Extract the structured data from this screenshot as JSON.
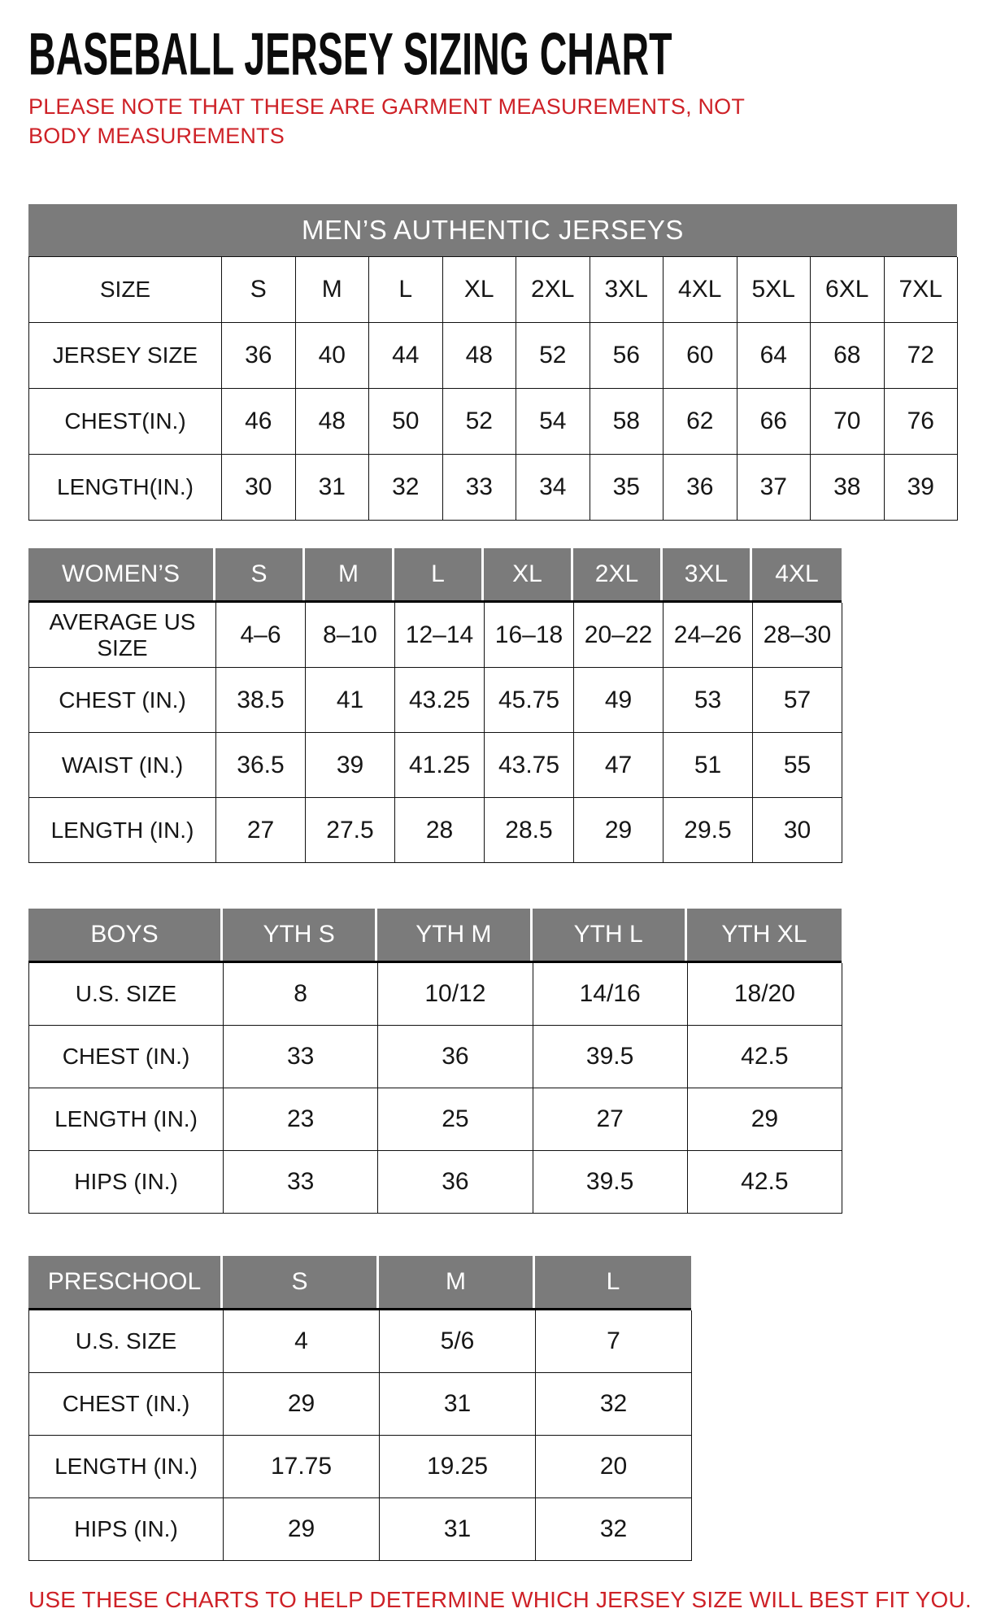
{
  "page": {
    "title": "BASEBALL JERSEY SIZING CHART",
    "note": "PLEASE NOTE THAT THESE ARE GARMENT MEASUREMENTS, NOT BODY MEASUREMENTS",
    "footer": "USE THESE CHARTS TO HELP DETERMINE WHICH JERSEY SIZE WILL BEST FIT YOU.",
    "colors": {
      "accent_red": "#ce2127",
      "header_gray": "#7b7b7b",
      "border_black": "#101010"
    }
  },
  "tables": [
    {
      "id": "mens",
      "banner": "MEN’S AUTHENTIC JERSEYS",
      "rows": [
        {
          "label": "SIZE",
          "values": [
            "S",
            "M",
            "L",
            "XL",
            "2XL",
            "3XL",
            "4XL",
            "5XL",
            "6XL",
            "7XL"
          ]
        },
        {
          "label": "JERSEY SIZE",
          "values": [
            "36",
            "40",
            "44",
            "48",
            "52",
            "56",
            "60",
            "64",
            "68",
            "72"
          ]
        },
        {
          "label": "CHEST(IN.)",
          "values": [
            "46",
            "48",
            "50",
            "52",
            "54",
            "58",
            "62",
            "66",
            "70",
            "76"
          ]
        },
        {
          "label": "LENGTH(IN.)",
          "values": [
            "30",
            "31",
            "32",
            "33",
            "34",
            "35",
            "36",
            "37",
            "38",
            "39"
          ]
        }
      ]
    },
    {
      "id": "womens",
      "header": {
        "label": "WOMEN’S",
        "sizes": [
          "S",
          "M",
          "L",
          "XL",
          "2XL",
          "3XL",
          "4XL"
        ]
      },
      "rows": [
        {
          "label": "AVERAGE US SIZE",
          "values": [
            "4–6",
            "8–10",
            "12–14",
            "16–18",
            "20–22",
            "24–26",
            "28–30"
          ]
        },
        {
          "label": "CHEST (IN.)",
          "values": [
            "38.5",
            "41",
            "43.25",
            "45.75",
            "49",
            "53",
            "57"
          ]
        },
        {
          "label": "WAIST (IN.)",
          "values": [
            "36.5",
            "39",
            "41.25",
            "43.75",
            "47",
            "51",
            "55"
          ]
        },
        {
          "label": "LENGTH (IN.)",
          "values": [
            "27",
            "27.5",
            "28",
            "28.5",
            "29",
            "29.5",
            "30"
          ]
        }
      ]
    },
    {
      "id": "boys",
      "header": {
        "label": "BOYS",
        "sizes": [
          "YTH S",
          "YTH M",
          "YTH L",
          "YTH XL"
        ]
      },
      "rows": [
        {
          "label": "U.S. SIZE",
          "values": [
            "8",
            "10/12",
            "14/16",
            "18/20"
          ]
        },
        {
          "label": "CHEST (IN.)",
          "values": [
            "33",
            "36",
            "39.5",
            "42.5"
          ]
        },
        {
          "label": "LENGTH (IN.)",
          "values": [
            "23",
            "25",
            "27",
            "29"
          ]
        },
        {
          "label": "HIPS (IN.)",
          "values": [
            "33",
            "36",
            "39.5",
            "42.5"
          ]
        }
      ]
    },
    {
      "id": "preschool",
      "header": {
        "label": "PRESCHOOL",
        "sizes": [
          "S",
          "M",
          "L"
        ]
      },
      "rows": [
        {
          "label": "U.S. SIZE",
          "values": [
            "4",
            "5/6",
            "7"
          ]
        },
        {
          "label": "CHEST (IN.)",
          "values": [
            "29",
            "31",
            "32"
          ]
        },
        {
          "label": "LENGTH (IN.)",
          "values": [
            "17.75",
            "19.25",
            "20"
          ]
        },
        {
          "label": "HIPS (IN.)",
          "values": [
            "29",
            "31",
            "32"
          ]
        }
      ]
    }
  ]
}
